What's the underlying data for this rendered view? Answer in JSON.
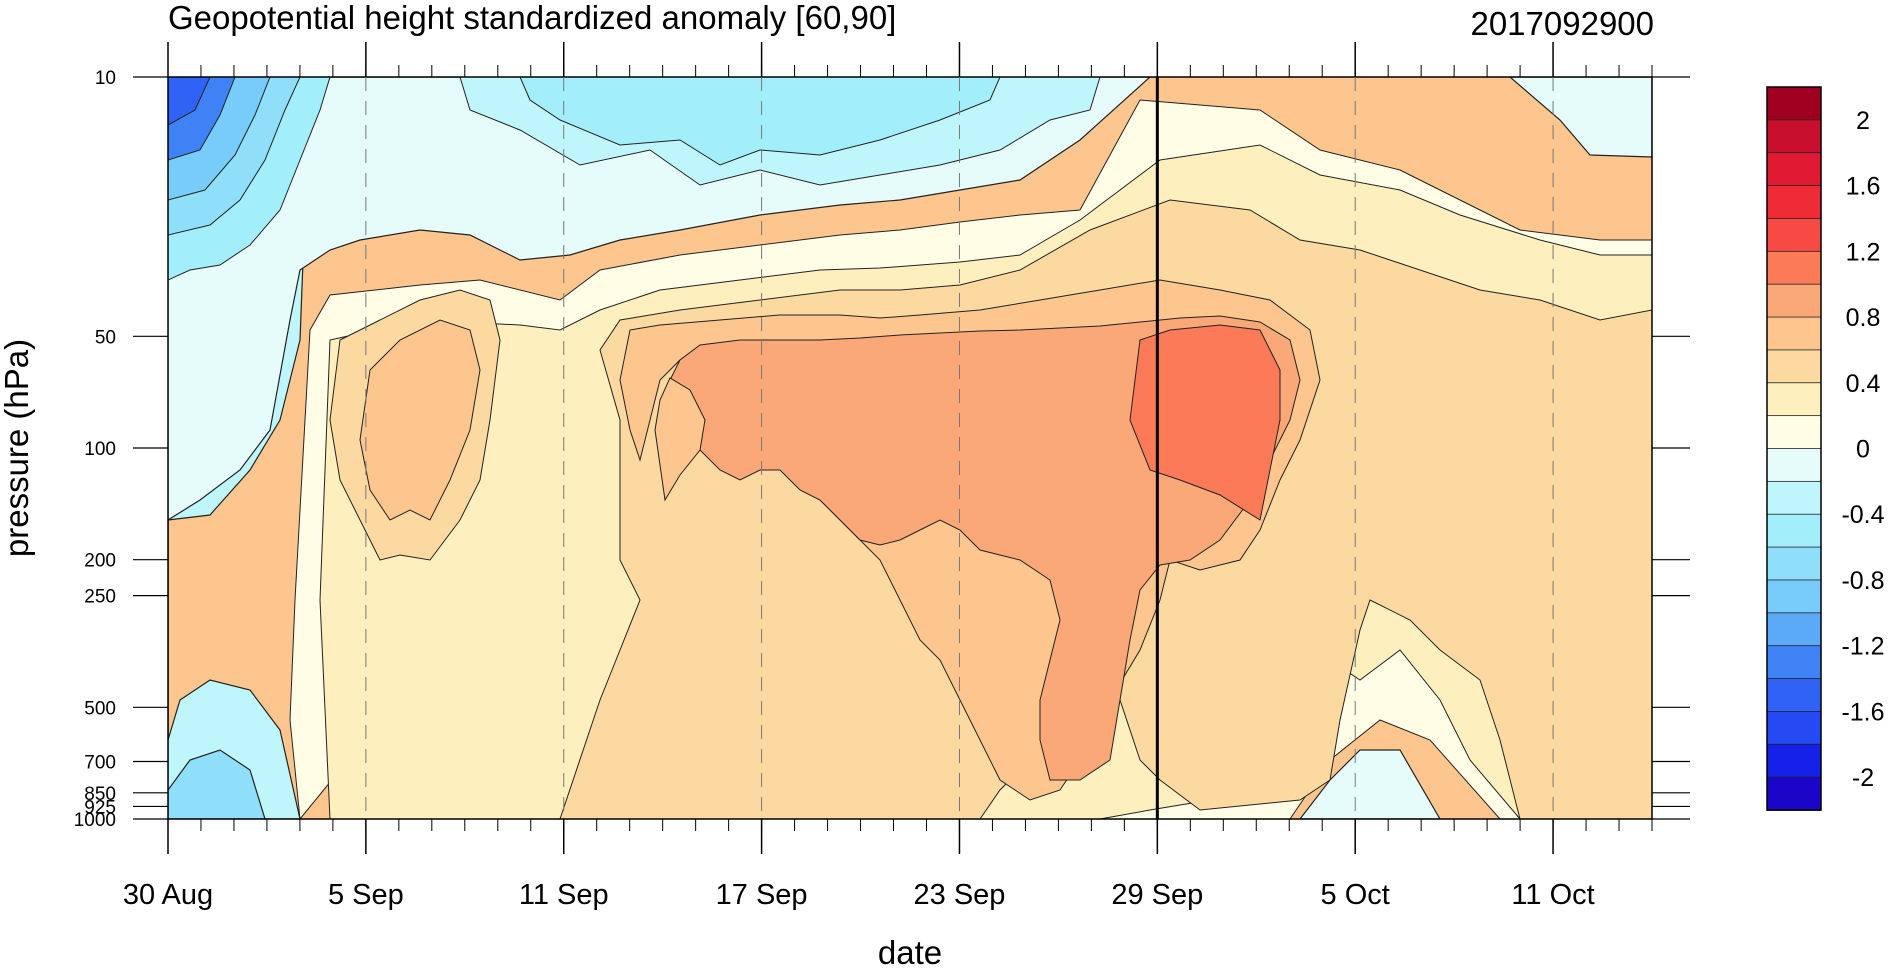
{
  "chart_data": {
    "type": "heatmap",
    "title": "Geopotential height standardized anomaly [60,90]",
    "date_label": "2017092900",
    "xlabel": "date",
    "ylabel": "pressure (hPa)",
    "x_ticks": [
      "30 Aug",
      "5 Sep",
      "11 Sep",
      "17 Sep",
      "23 Sep",
      "29 Sep",
      "5 Oct",
      "11 Oct"
    ],
    "x_range_days": [
      0,
      45
    ],
    "x_tick_days": [
      0,
      6,
      12,
      18,
      24,
      30,
      36,
      42
    ],
    "marker_day": 30,
    "y_scale": "log",
    "y_range": [
      1000,
      10
    ],
    "y_ticks": [
      10,
      50,
      100,
      200,
      250,
      500,
      700,
      850,
      925,
      1000
    ],
    "y_tick_labels": [
      "10",
      "50",
      "100",
      "200",
      "250",
      "500",
      "700",
      "850",
      "925",
      "1000"
    ],
    "grid": "vertical dashed at date ticks",
    "colorbar": {
      "placement": "right",
      "levels": [
        -2.2,
        -2,
        -1.8,
        -1.6,
        -1.4,
        -1.2,
        -1,
        -0.8,
        -0.6,
        -0.4,
        -0.2,
        0,
        0.4,
        0.6,
        0.8,
        1,
        1.2,
        1.4,
        1.6,
        1.8,
        2,
        2.2
      ],
      "colors": [
        "#1a05c8",
        "#1521e8",
        "#2549f2",
        "#2f62f5",
        "#3f82f5",
        "#5aaaf8",
        "#77ccfa",
        "#8fdffa",
        "#a3eefb",
        "#bff6fb",
        "#e6fcfb",
        "#fffde6",
        "#fdefbe",
        "#fbd9a1",
        "#fcc68e",
        "#fba878",
        "#fb7a58",
        "#f74a44",
        "#ef2c36",
        "#e01a32",
        "#c8102e",
        "#a0001f"
      ],
      "tick_labels": [
        "2",
        "1.6",
        "1.2",
        "0.8",
        "0.4",
        "0",
        "-0.4",
        "-0.8",
        "-1.2",
        "-1.6",
        "-2"
      ]
    },
    "regions": [
      {
        "level": "-0.2..0",
        "color": "#e6fcfb"
      },
      {
        "level": "-0.4..-0.2",
        "color": "#bff6fb"
      },
      {
        "level": "-0.6..-0.4",
        "color": "#a3eefb"
      },
      {
        "level": "-0.8..-0.6",
        "color": "#8fdffa"
      },
      {
        "level": "-1..-0.8",
        "color": "#77ccfa"
      },
      {
        "level": "-1.2..-1",
        "color": "#5aaaf8"
      },
      {
        "level": "-1.4..-1.2",
        "color": "#3f82f5"
      },
      {
        "level": "-1.6..-1.4",
        "color": "#2f62f5"
      },
      {
        "level": "0..0.4",
        "color": "#fffde6"
      },
      {
        "level": "0.4..0.6",
        "color": "#fdefbe"
      },
      {
        "level": "0.6..0.8",
        "color": "#fbd9a1"
      },
      {
        "level": "0.8..1",
        "color": "#fcc68e"
      },
      {
        "level": "1..1.2",
        "color": "#fba878"
      },
      {
        "level": "1.2..1.4",
        "color": "#fb7a58"
      }
    ]
  }
}
